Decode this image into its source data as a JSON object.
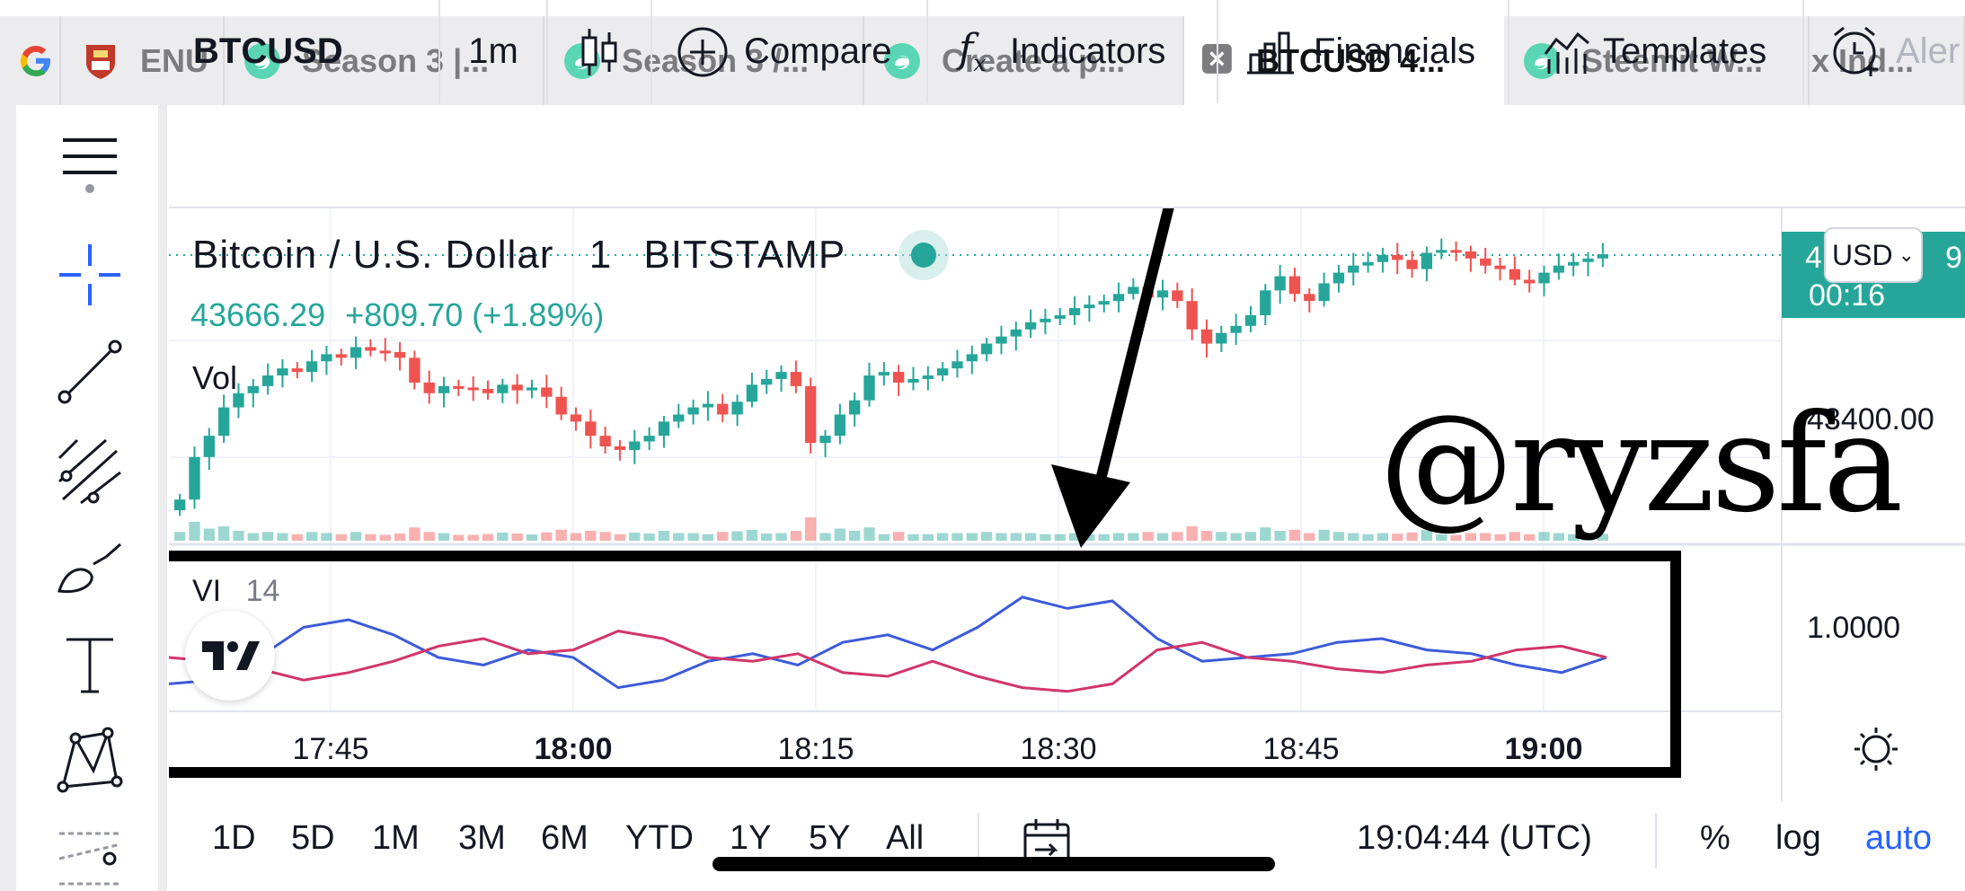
{
  "tabs": [
    {
      "label": "",
      "icon": "google-icon"
    },
    {
      "label": "ENU",
      "icon": "crest-icon"
    },
    {
      "label": "Season 3 |...",
      "icon": "steemit-icon"
    },
    {
      "label": "Season 3 /...",
      "icon": "steemit-icon"
    },
    {
      "label": "Create a p...",
      "icon": "steemit-icon"
    },
    {
      "label": "BTCUSD 4...",
      "icon": "close-icon",
      "active": true
    },
    {
      "label": "Steemit W...",
      "icon": "steemit-icon"
    },
    {
      "label": "x Ind...",
      "icon": ""
    }
  ],
  "toolbar": {
    "symbol": "BTCUSD",
    "interval": "1m",
    "compare": "Compare",
    "indicators": "Indicators",
    "financials": "Financials",
    "templates": "Templates",
    "alert": "Aler"
  },
  "legend": {
    "title": "Bitcoin / U.S. Dollar",
    "interval": "1",
    "exchange": "BITSTAMP",
    "price": "43666.29",
    "change": "+809.70 (+1.89%)",
    "vol_label": "Vol",
    "indicator": "VI",
    "indicator_len": "14"
  },
  "price_axis": {
    "currency": "USD",
    "last_price_fragment_left": "4",
    "last_price_fragment_right": "9",
    "countdown": "00:16",
    "level_price": "43400.00",
    "level_vi": "1.0000"
  },
  "time_axis": [
    "17:45",
    "18:00",
    "18:15",
    "18:30",
    "18:45",
    "19:00"
  ],
  "ranges": [
    "1D",
    "5D",
    "1M",
    "3M",
    "6M",
    "YTD",
    "1Y",
    "5Y",
    "All"
  ],
  "clock": "19:04:44 (UTC)",
  "scale_options": {
    "percent": "%",
    "log": "log",
    "auto": "auto"
  },
  "watermark": "@ryzsfa",
  "colors": {
    "up": "#26a69a",
    "down": "#ef5350",
    "vi_plus": "#3c5bd9",
    "vi_minus": "#d2356b",
    "accent": "#2962ff"
  },
  "chart_data": {
    "type": "candlestick",
    "symbol": "BTCUSD",
    "interval": "1m",
    "candles_close_approx": [
      43320,
      43380,
      43410,
      43450,
      43470,
      43480,
      43495,
      43505,
      43500,
      43515,
      43525,
      43520,
      43535,
      43530,
      43528,
      43520,
      43485,
      43470,
      43480,
      43478,
      43476,
      43470,
      43482,
      43474,
      43478,
      43465,
      43440,
      43430,
      43410,
      43395,
      43390,
      43402,
      43410,
      43430,
      43440,
      43450,
      43455,
      43440,
      43458,
      43482,
      43490,
      43500,
      43480,
      43400,
      43410,
      43440,
      43460,
      43495,
      43500,
      43485,
      43490,
      43495,
      43505,
      43515,
      43525,
      43540,
      43550,
      43560,
      43570,
      43575,
      43580,
      43590,
      43595,
      43600,
      43610,
      43620,
      43605,
      43615,
      43600,
      43560,
      43540,
      43555,
      43565,
      43580,
      43615,
      43635,
      43610,
      43600,
      43625,
      43640,
      43650,
      43655,
      43665,
      43658,
      43645,
      43668,
      43672,
      43670,
      43660,
      43650,
      43645,
      43630,
      43625,
      43640,
      43650,
      43655,
      43660,
      43666
    ],
    "vortex": {
      "length": 14,
      "vi_plus": [
        0.93,
        0.94,
        1.0,
        1.08,
        1.1,
        1.06,
        1.0,
        0.98,
        1.02,
        1.0,
        0.92,
        0.94,
        0.99,
        1.01,
        0.98,
        1.04,
        1.06,
        1.02,
        1.08,
        1.16,
        1.13,
        1.15,
        1.05,
        0.99,
        1.0,
        1.01,
        1.04,
        1.05,
        1.02,
        1.01,
        0.98,
        0.96,
        1.0
      ],
      "vi_minus": [
        1.0,
        0.99,
        0.97,
        0.94,
        0.96,
        0.99,
        1.03,
        1.05,
        1.01,
        1.02,
        1.07,
        1.05,
        1.0,
        0.99,
        1.01,
        0.96,
        0.95,
        0.99,
        0.95,
        0.92,
        0.91,
        0.93,
        1.02,
        1.04,
        1.0,
        0.99,
        0.97,
        0.96,
        0.98,
        0.99,
        1.02,
        1.03,
        1.0
      ]
    },
    "y_levels": [
      43400.0,
      1.0
    ],
    "x_ticks": [
      "17:45",
      "18:00",
      "18:15",
      "18:30",
      "18:45",
      "19:00"
    ]
  }
}
